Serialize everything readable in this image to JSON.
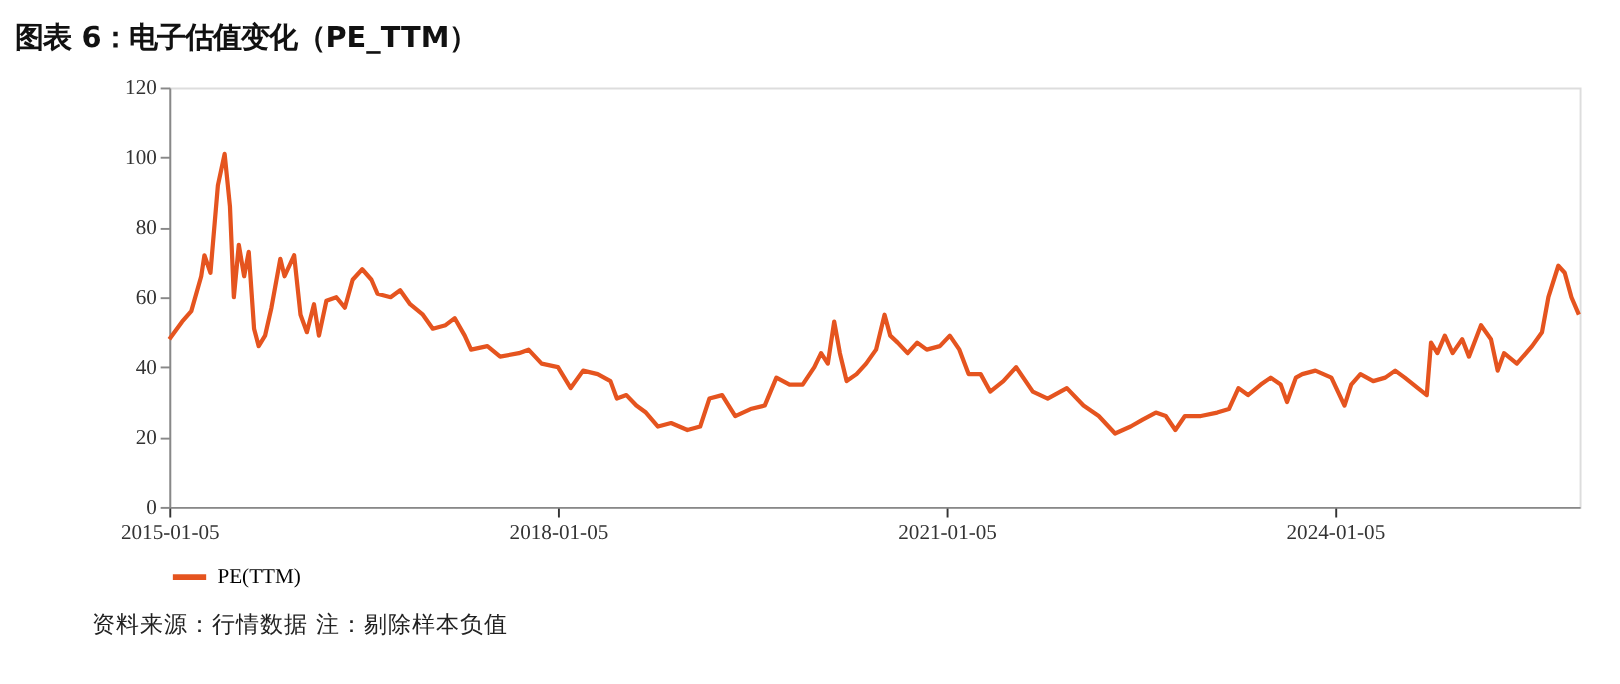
{
  "chart_data": {
    "type": "line",
    "title": "图表 6：电子估值变化（PE_TTM）",
    "x": [
      "2015-01-05",
      "2015-02-10",
      "2015-03-08",
      "2015-04-05",
      "2015-04-14",
      "2015-05-01",
      "2015-05-22",
      "2015-06-10",
      "2015-06-25",
      "2015-07-06",
      "2015-07-20",
      "2015-08-04",
      "2015-08-17",
      "2015-09-01",
      "2015-09-14",
      "2015-10-02",
      "2015-10-20",
      "2015-11-14",
      "2015-11-26",
      "2015-12-23",
      "2016-01-10",
      "2016-01-28",
      "2016-02-17",
      "2016-03-02",
      "2016-03-23",
      "2016-04-20",
      "2016-05-14",
      "2016-06-05",
      "2016-07-02",
      "2016-07-28",
      "2016-08-14",
      "2016-09-20",
      "2016-10-17",
      "2016-11-14",
      "2016-12-20",
      "2017-01-17",
      "2017-02-22",
      "2017-03-20",
      "2017-04-17",
      "2017-05-05",
      "2017-06-20",
      "2017-07-26",
      "2017-09-17",
      "2017-10-14",
      "2017-11-20",
      "2018-01-05",
      "2018-02-10",
      "2018-03-17",
      "2018-04-27",
      "2018-06-02",
      "2018-06-20",
      "2018-07-17",
      "2018-08-14",
      "2018-09-10",
      "2018-10-14",
      "2018-11-20",
      "2019-01-05",
      "2019-02-10",
      "2019-03-08",
      "2019-04-13",
      "2019-05-20",
      "2019-07-02",
      "2019-08-11",
      "2019-09-13",
      "2019-10-20",
      "2019-11-26",
      "2019-12-29",
      "2020-01-17",
      "2020-02-05",
      "2020-02-23",
      "2020-03-10",
      "2020-03-29",
      "2020-04-26",
      "2020-05-23",
      "2020-06-20",
      "2020-07-14",
      "2020-07-30",
      "2020-08-20",
      "2020-09-17",
      "2020-10-14",
      "2020-11-10",
      "2020-12-17",
      "2021-01-14",
      "2021-02-10",
      "2021-03-08",
      "2021-04-11",
      "2021-05-08",
      "2021-06-14",
      "2021-07-20",
      "2021-09-05",
      "2021-10-17",
      "2021-12-10",
      "2022-01-26",
      "2022-03-10",
      "2022-04-25",
      "2022-06-08",
      "2022-07-12",
      "2022-08-18",
      "2022-09-15",
      "2022-10-12",
      "2022-11-08",
      "2022-12-23",
      "2023-02-07",
      "2023-03-12",
      "2023-04-08",
      "2023-05-05",
      "2023-06-10",
      "2023-07-08",
      "2023-08-05",
      "2023-08-23",
      "2023-09-17",
      "2023-10-05",
      "2023-11-11",
      "2023-12-26",
      "2024-02-01",
      "2024-02-20",
      "2024-03-17",
      "2024-04-22",
      "2024-05-26",
      "2024-06-23",
      "2024-07-20",
      "2024-08-26",
      "2024-09-20",
      "2024-10-02",
      "2024-10-20",
      "2024-11-10",
      "2024-12-02",
      "2024-12-29",
      "2025-01-17",
      "2025-02-20",
      "2025-03-20",
      "2025-04-08",
      "2025-04-26",
      "2025-06-01",
      "2025-07-14",
      "2025-08-11",
      "2025-08-29",
      "2025-09-26",
      "2025-10-14",
      "2025-11-02",
      "2025-11-23"
    ],
    "series": [
      {
        "name": "PE(TTM)",
        "color": "#e5541f",
        "values": [
          48,
          53,
          56,
          66,
          72,
          67,
          92,
          101,
          86,
          60,
          75,
          66,
          73,
          51,
          46,
          49,
          57,
          71,
          66,
          72,
          55,
          50,
          58,
          49,
          59,
          60,
          57,
          65,
          68,
          65,
          61,
          60,
          62,
          58,
          55,
          51,
          52,
          54,
          49,
          45,
          46,
          43,
          44,
          45,
          41,
          40,
          34,
          39,
          38,
          36,
          31,
          32,
          29,
          27,
          23,
          24,
          22,
          23,
          31,
          32,
          26,
          28,
          29,
          37,
          35,
          35,
          40,
          44,
          41,
          53,
          44,
          36,
          38,
          41,
          45,
          55,
          49,
          47,
          44,
          47,
          45,
          46,
          49,
          45,
          38,
          38,
          33,
          36,
          40,
          33,
          31,
          34,
          29,
          26,
          21,
          23,
          25,
          27,
          26,
          22,
          26,
          26,
          27,
          28,
          34,
          32,
          35,
          37,
          35,
          30,
          37,
          38,
          39,
          37,
          29,
          35,
          38,
          36,
          37,
          39,
          37,
          34,
          32,
          47,
          44,
          49,
          44,
          48,
          43,
          52,
          48,
          39,
          44,
          41,
          46,
          50,
          60,
          69,
          67,
          60,
          55
        ]
      }
    ],
    "xlim": [
      "2015-01-05",
      "2025-11-25"
    ],
    "xticks": [
      "2015-01-05",
      "2018-01-05",
      "2021-01-05",
      "2024-01-05"
    ],
    "ylim": [
      0,
      120
    ],
    "yticks": [
      0,
      20,
      40,
      60,
      80,
      100,
      120
    ],
    "grid": false,
    "legend": "bottom",
    "annotations": [
      "资料来源：行情数据 注：剔除样本负值"
    ]
  }
}
